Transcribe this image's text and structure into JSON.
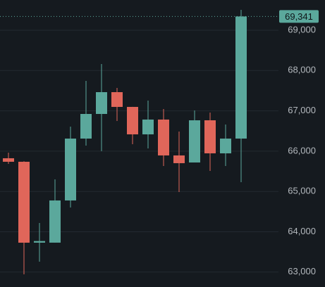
{
  "chart_data": {
    "type": "candlestick",
    "open": [
      65824,
      65737,
      63730,
      63730,
      64777,
      66312,
      66923,
      67464,
      67098,
      66417,
      66784,
      65894,
      65719,
      66766,
      65946,
      66312
    ],
    "high": [
      65963,
      65750,
      64218,
      65300,
      66609,
      67743,
      68162,
      67569,
      67100,
      67255,
      67045,
      66487,
      67010,
      66958,
      66661,
      69506
    ],
    "low": [
      65684,
      62944,
      63258,
      63730,
      64602,
      66138,
      66000,
      66749,
      66173,
      66068,
      65632,
      64986,
      65719,
      65510,
      65632,
      65230
    ],
    "close": [
      65737,
      63729,
      63770,
      64777,
      66312,
      66923,
      67464,
      67098,
      66417,
      66784,
      65894,
      65702,
      66766,
      65946,
      66312,
      69341
    ],
    "up_color": "#5ba89c",
    "down_color": "#e0665a",
    "ylim": [
      62630,
      69750
    ],
    "yticks": [
      {
        "value": 63000,
        "label": "63,000"
      },
      {
        "value": 64000,
        "label": "64,000"
      },
      {
        "value": 65000,
        "label": "65,000"
      },
      {
        "value": 66000,
        "label": "66,000"
      },
      {
        "value": 67000,
        "label": "67,000"
      },
      {
        "value": 68000,
        "label": "68,000"
      },
      {
        "value": 69000,
        "label": "69,000"
      }
    ],
    "grid": true,
    "last_price": {
      "value": 69341,
      "label": "69,341"
    }
  }
}
